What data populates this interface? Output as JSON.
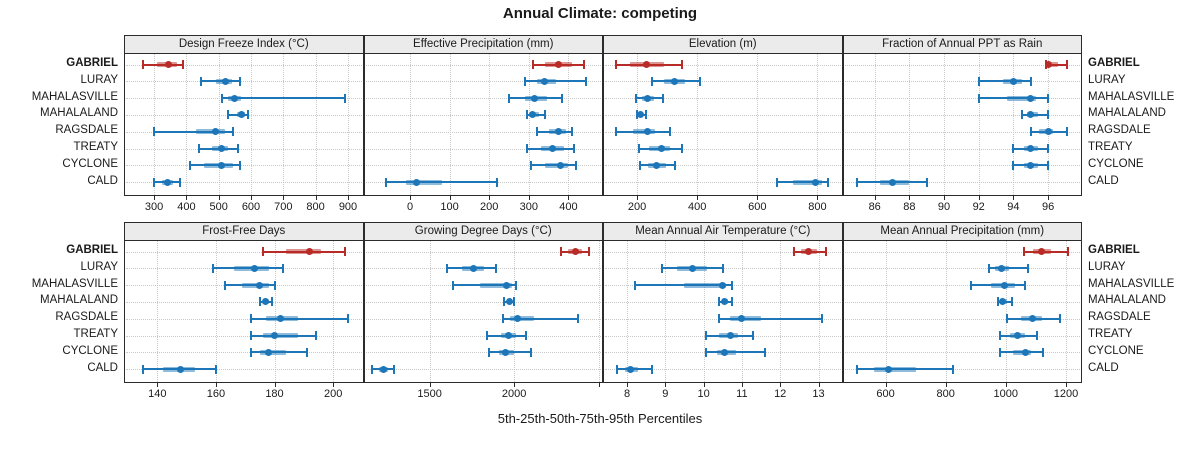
{
  "title": "Annual Climate: competing",
  "footer": "5th-25th-50th-75th-95th Percentiles",
  "sites": [
    "GABRIEL",
    "LURAY",
    "MAHALASVILLE",
    "MAHALALAND",
    "RAGSDALE",
    "TREATY",
    "CYCLONE",
    "CALD"
  ],
  "highlight_site": "GABRIEL",
  "colors": {
    "highlight": "#b92b27",
    "normal": "#1d76b8",
    "strip_bg": "#ebebeb",
    "panel_border": "#2b2b2b",
    "grid": "#c9c9c9"
  },
  "chart_data": {
    "type": "dotplot-interval-trellis",
    "percentile_levels": [
      5,
      25,
      50,
      75,
      95
    ],
    "layout": {
      "rows": 2,
      "cols": 4,
      "grid": "dotted",
      "site_labels": "both-sides"
    },
    "panels": [
      {
        "title": "Design Freeze Index (°C)",
        "axis": {
          "min": 210,
          "max": 945,
          "ticks": [
            300,
            400,
            500,
            600,
            700,
            800,
            900
          ]
        },
        "series": [
          {
            "name": "GABRIEL",
            "percentiles": [
              265,
              310,
              345,
              370,
              390
            ]
          },
          {
            "name": "LURAY",
            "percentiles": [
              445,
              490,
              520,
              540,
              565
            ]
          },
          {
            "name": "MAHALASVILLE",
            "percentiles": [
              510,
              530,
              550,
              570,
              890
            ]
          },
          {
            "name": "MAHALALAND",
            "percentiles": [
              530,
              555,
              570,
              580,
              590
            ]
          },
          {
            "name": "RAGSDALE",
            "percentiles": [
              300,
              430,
              490,
              520,
              545
            ]
          },
          {
            "name": "TREATY",
            "percentiles": [
              440,
              480,
              510,
              530,
              560
            ]
          },
          {
            "name": "CYCLONE",
            "percentiles": [
              410,
              455,
              510,
              545,
              565
            ]
          },
          {
            "name": "CALD",
            "percentiles": [
              300,
              325,
              340,
              360,
              380
            ]
          }
        ]
      },
      {
        "title": "Effective Precipitation (mm)",
        "axis": {
          "min": -115,
          "max": 485,
          "ticks": [
            0,
            100,
            200,
            300,
            400
          ]
        },
        "series": [
          {
            "name": "GABRIEL",
            "percentiles": [
              310,
              340,
              375,
              410,
              440
            ]
          },
          {
            "name": "LURAY",
            "percentiles": [
              290,
              320,
              340,
              370,
              445
            ]
          },
          {
            "name": "MAHALASVILLE",
            "percentiles": [
              250,
              290,
              315,
              345,
              385
            ]
          },
          {
            "name": "MAHALALAND",
            "percentiles": [
              295,
              305,
              310,
              325,
              340
            ]
          },
          {
            "name": "RAGSDALE",
            "percentiles": [
              320,
              350,
              375,
              395,
              410
            ]
          },
          {
            "name": "TREATY",
            "percentiles": [
              295,
              330,
              360,
              390,
              415
            ]
          },
          {
            "name": "CYCLONE",
            "percentiles": [
              305,
              340,
              380,
              400,
              420
            ]
          },
          {
            "name": "CALD",
            "percentiles": [
              -60,
              -10,
              15,
              80,
              220
            ]
          }
        ]
      },
      {
        "title": "Elevation (m)",
        "axis": {
          "min": 90,
          "max": 880,
          "ticks": [
            200,
            400,
            600,
            800
          ]
        },
        "series": [
          {
            "name": "GABRIEL",
            "percentiles": [
              130,
              175,
              230,
              290,
              350
            ]
          },
          {
            "name": "LURAY",
            "percentiles": [
              250,
              290,
              325,
              360,
              410
            ]
          },
          {
            "name": "MAHALASVILLE",
            "percentiles": [
              195,
              215,
              235,
              255,
              285
            ]
          },
          {
            "name": "MAHALALAND",
            "percentiles": [
              198,
              205,
              212,
              220,
              228
            ]
          },
          {
            "name": "RAGSDALE",
            "percentiles": [
              130,
              185,
              235,
              260,
              310
            ]
          },
          {
            "name": "TREATY",
            "percentiles": [
              205,
              240,
              280,
              310,
              350
            ]
          },
          {
            "name": "CYCLONE",
            "percentiles": [
              210,
              235,
              265,
              295,
              325
            ]
          },
          {
            "name": "CALD",
            "percentiles": [
              665,
              720,
              795,
              815,
              835
            ]
          }
        ]
      },
      {
        "title": "Fraction of Annual PPT as Rain",
        "axis": {
          "min": 84.2,
          "max": 97.9,
          "ticks": [
            86,
            88,
            90,
            92,
            94,
            96
          ]
        },
        "series": [
          {
            "name": "GABRIEL",
            "percentiles": [
              95.9,
              96.0,
              96.0,
              96.6,
              97.1
            ]
          },
          {
            "name": "LURAY",
            "percentiles": [
              92.0,
              93.4,
              94.0,
              94.5,
              95.0
            ]
          },
          {
            "name": "MAHALASVILLE",
            "percentiles": [
              92.0,
              93.6,
              95.0,
              95.3,
              96.0
            ]
          },
          {
            "name": "MAHALALAND",
            "percentiles": [
              94.5,
              94.8,
              95.0,
              95.4,
              96.0
            ]
          },
          {
            "name": "RAGSDALE",
            "percentiles": [
              95.0,
              95.5,
              96.0,
              96.3,
              97.1
            ]
          },
          {
            "name": "TREATY",
            "percentiles": [
              94.0,
              94.6,
              95.0,
              95.4,
              96.0
            ]
          },
          {
            "name": "CYCLONE",
            "percentiles": [
              94.0,
              94.6,
              95.0,
              95.4,
              96.0
            ]
          },
          {
            "name": "CALD",
            "percentiles": [
              85.0,
              86.3,
              87.0,
              88.0,
              89.0
            ]
          }
        ]
      },
      {
        "title": "Frost-Free Days",
        "axis": {
          "min": 129,
          "max": 210,
          "ticks": [
            140,
            160,
            180,
            200
          ]
        },
        "series": [
          {
            "name": "GABRIEL",
            "percentiles": [
              176,
              184,
              192,
              196,
              204
            ]
          },
          {
            "name": "LURAY",
            "percentiles": [
              159,
              166,
              173,
              178,
              183
            ]
          },
          {
            "name": "MAHALASVILLE",
            "percentiles": [
              163,
              169,
              175,
              178,
              180
            ]
          },
          {
            "name": "MAHALALAND",
            "percentiles": [
              175,
              176,
              177,
              178,
              179
            ]
          },
          {
            "name": "RAGSDALE",
            "percentiles": [
              172,
              177,
              182,
              188,
              205
            ]
          },
          {
            "name": "TREATY",
            "percentiles": [
              172,
              176,
              180,
              188,
              194
            ]
          },
          {
            "name": "CYCLONE",
            "percentiles": [
              172,
              175,
              178,
              184,
              191
            ]
          },
          {
            "name": "CALD",
            "percentiles": [
              135,
              142,
              148,
              153,
              160
            ]
          }
        ]
      },
      {
        "title": "Growing Degree Days (°C)",
        "axis": {
          "min": 1115,
          "max": 2520,
          "ticks": [
            1500,
            2000,
            2500
          ],
          "tick_labels": [
            "1500",
            "2000",
            ""
          ]
        },
        "series": [
          {
            "name": "GABRIEL",
            "percentiles": [
              2280,
              2320,
              2360,
              2400,
              2440
            ]
          },
          {
            "name": "LURAY",
            "percentiles": [
              1600,
              1690,
              1760,
              1820,
              1890
            ]
          },
          {
            "name": "MAHALASVILLE",
            "percentiles": [
              1640,
              1800,
              1955,
              1985,
              2010
            ]
          },
          {
            "name": "MAHALALAND",
            "percentiles": [
              1940,
              1955,
              1970,
              1985,
              2000
            ]
          },
          {
            "name": "RAGSDALE",
            "percentiles": [
              1935,
              1975,
              2020,
              2120,
              2380
            ]
          },
          {
            "name": "TREATY",
            "percentiles": [
              1840,
              1920,
              1965,
              2010,
              2070
            ]
          },
          {
            "name": "CYCLONE",
            "percentiles": [
              1850,
              1910,
              1950,
              2000,
              2100
            ]
          },
          {
            "name": "CALD",
            "percentiles": [
              1160,
              1200,
              1230,
              1255,
              1290
            ]
          }
        ]
      },
      {
        "title": "Mean Annual Air Temperature (°C)",
        "axis": {
          "min": 7.4,
          "max": 13.6,
          "ticks": [
            8,
            9,
            10,
            11,
            12,
            13
          ]
        },
        "series": [
          {
            "name": "GABRIEL",
            "percentiles": [
              12.35,
              12.55,
              12.75,
              12.95,
              13.2
            ]
          },
          {
            "name": "LURAY",
            "percentiles": [
              8.9,
              9.3,
              9.7,
              10.1,
              10.5
            ]
          },
          {
            "name": "MAHALASVILLE",
            "percentiles": [
              8.2,
              9.5,
              10.5,
              10.6,
              10.75
            ]
          },
          {
            "name": "MAHALALAND",
            "percentiles": [
              10.4,
              10.5,
              10.55,
              10.65,
              10.75
            ]
          },
          {
            "name": "RAGSDALE",
            "percentiles": [
              10.4,
              10.7,
              11.0,
              11.5,
              13.1
            ]
          },
          {
            "name": "TREATY",
            "percentiles": [
              10.05,
              10.4,
              10.7,
              10.9,
              11.3
            ]
          },
          {
            "name": "CYCLONE",
            "percentiles": [
              10.05,
              10.35,
              10.55,
              10.85,
              11.6
            ]
          },
          {
            "name": "CALD",
            "percentiles": [
              7.75,
              7.95,
              8.1,
              8.3,
              8.65
            ]
          }
        ]
      },
      {
        "title": "Mean Annual Precipitation (mm)",
        "axis": {
          "min": 460,
          "max": 1250,
          "ticks": [
            600,
            800,
            1000,
            1200
          ]
        },
        "series": [
          {
            "name": "GABRIEL",
            "percentiles": [
              1060,
              1090,
              1120,
              1150,
              1205
            ]
          },
          {
            "name": "LURAY",
            "percentiles": [
              945,
              965,
              985,
              1010,
              1075
            ]
          },
          {
            "name": "MAHALASVILLE",
            "percentiles": [
              885,
              950,
              995,
              1030,
              1065
            ]
          },
          {
            "name": "MAHALALAND",
            "percentiles": [
              975,
              985,
              990,
              1005,
              1020
            ]
          },
          {
            "name": "RAGSDALE",
            "percentiles": [
              1005,
              1050,
              1090,
              1120,
              1180
            ]
          },
          {
            "name": "TREATY",
            "percentiles": [
              980,
              1015,
              1040,
              1065,
              1105
            ]
          },
          {
            "name": "CYCLONE",
            "percentiles": [
              980,
              1025,
              1065,
              1085,
              1125
            ]
          },
          {
            "name": "CALD",
            "percentiles": [
              505,
              560,
              610,
              700,
              825
            ]
          }
        ]
      }
    ]
  }
}
